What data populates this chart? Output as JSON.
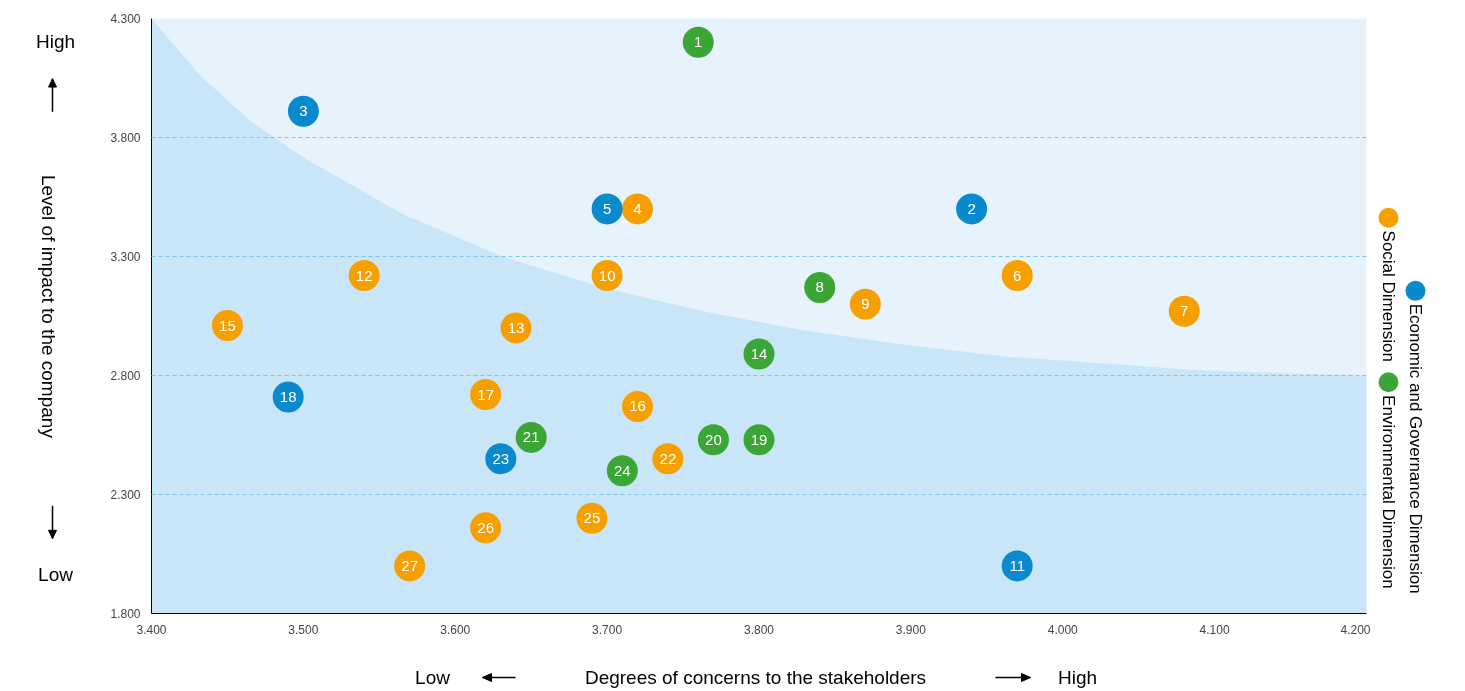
{
  "chart_data": {
    "type": "scatter",
    "xlabel": "Degrees of concerns to the stakeholders",
    "ylabel": "Level of impact to the company",
    "annotations": [
      "Low",
      "High",
      "High",
      "Low",
      {
        "text": "1",
        "x": 3.76,
        "y": 4.2
      },
      {
        "text": "2",
        "x": 3.94,
        "y": 3.5
      },
      {
        "text": "3",
        "x": 3.5,
        "y": 3.91
      },
      {
        "text": "4",
        "x": 3.72,
        "y": 3.5
      },
      {
        "text": "5",
        "x": 3.7,
        "y": 3.5
      },
      {
        "text": "6",
        "x": 3.97,
        "y": 3.22
      },
      {
        "text": "7",
        "x": 4.08,
        "y": 3.07
      },
      {
        "text": "8",
        "x": 3.84,
        "y": 3.17
      },
      {
        "text": "9",
        "x": 3.87,
        "y": 3.1
      },
      {
        "text": "10",
        "x": 3.7,
        "y": 3.22
      },
      {
        "text": "11",
        "x": 3.97,
        "y": 2.0
      },
      {
        "text": "12",
        "x": 3.54,
        "y": 3.22
      },
      {
        "text": "13",
        "x": 3.64,
        "y": 3.0
      },
      {
        "text": "14",
        "x": 3.8,
        "y": 2.89
      },
      {
        "text": "15",
        "x": 3.45,
        "y": 3.01
      },
      {
        "text": "16",
        "x": 3.72,
        "y": 2.67
      },
      {
        "text": "17",
        "x": 3.62,
        "y": 2.72
      },
      {
        "text": "18",
        "x": 3.49,
        "y": 2.71
      },
      {
        "text": "19",
        "x": 3.8,
        "y": 2.53
      },
      {
        "text": "20",
        "x": 3.77,
        "y": 2.53
      },
      {
        "text": "21",
        "x": 3.65,
        "y": 2.54
      },
      {
        "text": "22",
        "x": 3.74,
        "y": 2.45
      },
      {
        "text": "23",
        "x": 3.63,
        "y": 2.45
      },
      {
        "text": "24",
        "x": 3.71,
        "y": 2.4
      },
      {
        "text": "25",
        "x": 3.69,
        "y": 2.2
      },
      {
        "text": "26",
        "x": 3.62,
        "y": 2.16
      },
      {
        "text": "27",
        "x": 3.57,
        "y": 2.0
      }
    ],
    "xlim": [
      3.4,
      4.2
    ],
    "ylim": [
      1.8,
      4.3
    ],
    "xticks": [
      {
        "value": 3.4,
        "label": "3.400"
      },
      {
        "value": 3.5,
        "label": "3.500"
      },
      {
        "value": 3.6,
        "label": "3.600"
      },
      {
        "value": 3.7,
        "label": "3.700"
      },
      {
        "value": 3.8,
        "label": "3.800"
      },
      {
        "value": 3.9,
        "label": "3.900"
      },
      {
        "value": 4.0,
        "label": "4.000"
      },
      {
        "value": 4.1,
        "label": "4.100"
      },
      {
        "value": 4.2,
        "label": "4.200"
      }
    ],
    "yticks": [
      {
        "value": 1.8,
        "label": "1.800"
      },
      {
        "value": 2.3,
        "label": "2.300"
      },
      {
        "value": 2.8,
        "label": "2.800"
      },
      {
        "value": 3.3,
        "label": "3.300"
      },
      {
        "value": 3.8,
        "label": "3.800"
      },
      {
        "value": 4.3,
        "label": "4.300"
      }
    ],
    "grid": "y",
    "legend": "right",
    "series": [
      {
        "type": "area",
        "color": "#c8e6f8",
        "x": [
          3.4,
          3.432,
          3.465,
          3.499,
          3.565,
          3.631,
          3.697,
          3.763,
          3.829,
          3.895,
          3.962,
          4.028,
          4.094,
          4.2
        ],
        "values": [
          4.3,
          4.06,
          3.87,
          3.72,
          3.48,
          3.3,
          3.17,
          3.07,
          2.99,
          2.93,
          2.88,
          2.85,
          2.82,
          2.8
        ]
      },
      {
        "name": "Social Dimension",
        "marker": "circle",
        "color": "#f5a000",
        "x": [
          3.72,
          3.97,
          4.08,
          3.87,
          3.7,
          3.54,
          3.64,
          3.45,
          3.72,
          3.62,
          3.74,
          3.69,
          3.62,
          3.57
        ],
        "values": [
          3.5,
          3.22,
          3.07,
          3.1,
          3.22,
          3.22,
          3.0,
          3.01,
          2.67,
          2.72,
          2.45,
          2.2,
          2.16,
          2.0
        ]
      },
      {
        "name": "Economic and Governance Dimension",
        "marker": "circle",
        "color": "#0a8acd",
        "x": [
          3.94,
          3.5,
          3.7,
          3.97,
          3.49,
          3.63
        ],
        "values": [
          3.5,
          3.91,
          3.5,
          2.0,
          2.71,
          2.45
        ]
      },
      {
        "name": "Environmental Dimension",
        "marker": "circle",
        "color": "#3ba635",
        "x": [
          3.76,
          3.84,
          3.8,
          3.8,
          3.77,
          3.65,
          3.71
        ],
        "values": [
          4.2,
          3.17,
          2.89,
          2.53,
          2.53,
          2.54,
          2.4
        ]
      }
    ]
  }
}
